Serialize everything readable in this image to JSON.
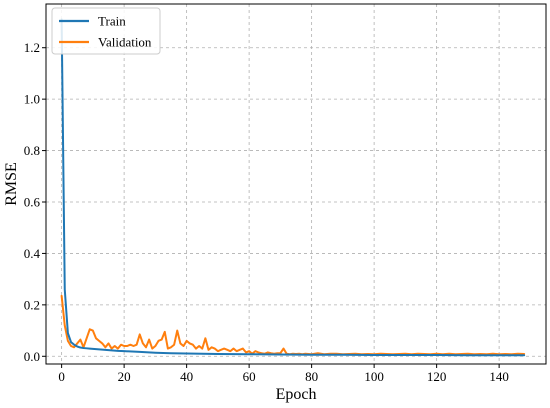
{
  "chart_data": {
    "type": "line",
    "xlabel": "Epoch",
    "ylabel": "RMSE",
    "xlim": [
      -5,
      155
    ],
    "ylim": [
      -0.03,
      1.37
    ],
    "xticks": [
      0,
      20,
      40,
      60,
      80,
      100,
      120,
      140
    ],
    "yticks": [
      0.0,
      0.2,
      0.4,
      0.6,
      0.8,
      1.0,
      1.2
    ],
    "ytick_labels": [
      "0.0",
      "0.2",
      "0.4",
      "0.6",
      "0.8",
      "1.0",
      "1.2"
    ],
    "grid": true,
    "legend_position": "top-left",
    "series": [
      {
        "name": "Train",
        "color": "#1f77b4",
        "x": [
          0,
          1,
          2,
          3,
          4,
          5,
          6,
          7,
          8,
          9,
          10,
          12,
          14,
          16,
          18,
          20,
          25,
          30,
          35,
          40,
          45,
          50,
          60,
          70,
          80,
          90,
          100,
          110,
          120,
          130,
          140,
          148
        ],
        "y": [
          1.31,
          0.26,
          0.09,
          0.055,
          0.045,
          0.038,
          0.034,
          0.032,
          0.031,
          0.03,
          0.029,
          0.027,
          0.025,
          0.023,
          0.021,
          0.02,
          0.017,
          0.014,
          0.012,
          0.011,
          0.01,
          0.009,
          0.008,
          0.007,
          0.006,
          0.006,
          0.005,
          0.005,
          0.005,
          0.004,
          0.004,
          0.004
        ]
      },
      {
        "name": "Validation",
        "color": "#ff7f0e",
        "x": [
          0,
          1,
          2,
          3,
          4,
          5,
          6,
          7,
          8,
          9,
          10,
          11,
          12,
          13,
          14,
          15,
          16,
          17,
          18,
          19,
          20,
          21,
          22,
          23,
          24,
          25,
          26,
          27,
          28,
          29,
          30,
          31,
          32,
          33,
          34,
          35,
          36,
          37,
          38,
          39,
          40,
          41,
          42,
          43,
          44,
          45,
          46,
          47,
          48,
          49,
          50,
          51,
          52,
          53,
          54,
          55,
          56,
          57,
          58,
          59,
          60,
          61,
          62,
          63,
          64,
          65,
          66,
          67,
          68,
          69,
          70,
          71,
          72,
          73,
          74,
          75,
          76,
          77,
          78,
          79,
          80,
          82,
          84,
          86,
          88,
          90,
          92,
          94,
          96,
          98,
          100,
          102,
          104,
          106,
          108,
          110,
          112,
          114,
          116,
          118,
          120,
          122,
          124,
          126,
          128,
          130,
          132,
          134,
          136,
          138,
          140,
          142,
          144,
          146,
          148
        ],
        "y": [
          0.235,
          0.12,
          0.06,
          0.04,
          0.035,
          0.05,
          0.065,
          0.035,
          0.07,
          0.105,
          0.1,
          0.07,
          0.06,
          0.05,
          0.035,
          0.05,
          0.03,
          0.04,
          0.03,
          0.045,
          0.04,
          0.04,
          0.045,
          0.04,
          0.045,
          0.085,
          0.05,
          0.035,
          0.065,
          0.03,
          0.04,
          0.06,
          0.065,
          0.095,
          0.03,
          0.035,
          0.045,
          0.1,
          0.05,
          0.04,
          0.06,
          0.05,
          0.045,
          0.03,
          0.04,
          0.03,
          0.07,
          0.025,
          0.035,
          0.03,
          0.02,
          0.025,
          0.03,
          0.025,
          0.02,
          0.03,
          0.02,
          0.025,
          0.03,
          0.015,
          0.02,
          0.01,
          0.02,
          0.015,
          0.012,
          0.01,
          0.015,
          0.012,
          0.01,
          0.012,
          0.012,
          0.03,
          0.01,
          0.008,
          0.01,
          0.009,
          0.01,
          0.008,
          0.01,
          0.009,
          0.008,
          0.012,
          0.008,
          0.01,
          0.01,
          0.008,
          0.009,
          0.01,
          0.008,
          0.009,
          0.008,
          0.01,
          0.009,
          0.008,
          0.009,
          0.01,
          0.008,
          0.01,
          0.009,
          0.008,
          0.01,
          0.008,
          0.01,
          0.008,
          0.009,
          0.01,
          0.008,
          0.009,
          0.008,
          0.01,
          0.008,
          0.009,
          0.008,
          0.01,
          0.009
        ]
      }
    ]
  }
}
